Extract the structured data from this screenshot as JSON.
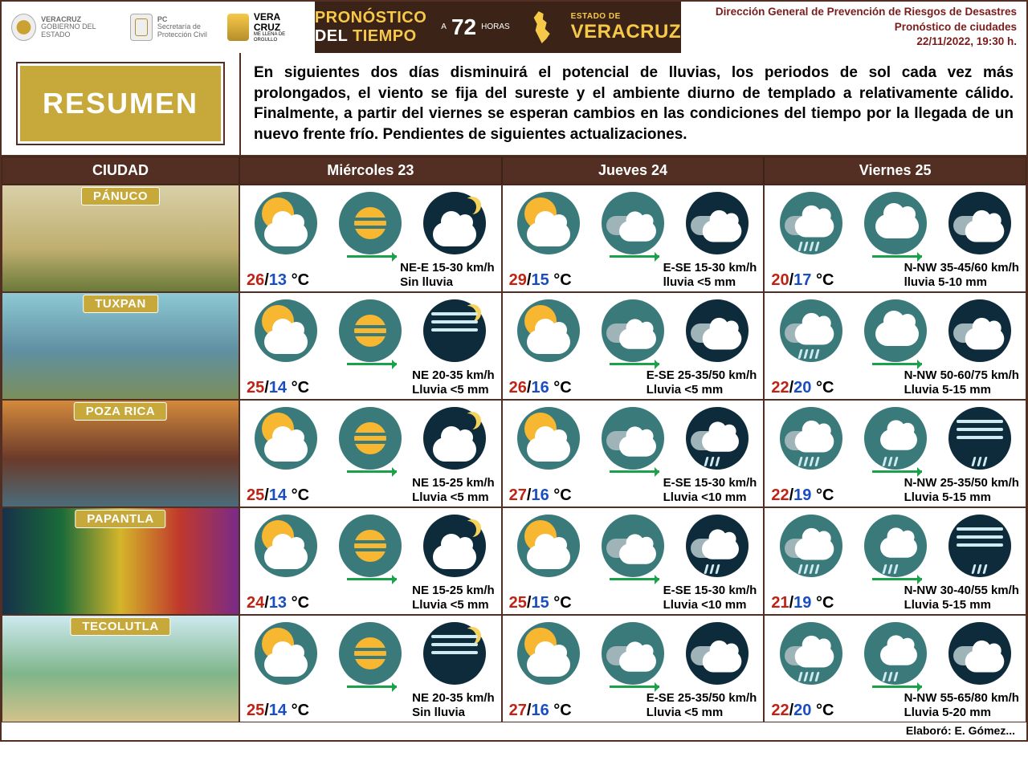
{
  "header": {
    "gov_label1": "VERACRUZ",
    "gov_label2": "GOBIERNO DEL ESTADO",
    "pc_label1": "PC",
    "pc_label2": "Secretaría de Protección Civil",
    "vc_label1": "VERA",
    "vc_label2": "CRUZ",
    "vc_sub": "ME LLENA DE ORGULLO",
    "banner_l1a": "PRONÓSTICO",
    "banner_l1b": "DEL",
    "banner_l1c": "TIEMPO",
    "banner_a": "A",
    "banner_72": "72",
    "banner_hrs": "HORAS",
    "banner_state_top": "ESTADO DE",
    "banner_state": "VERACRUZ",
    "right1": "Dirección General de Prevención de Riesgos de Desastres",
    "right2": "Pronóstico de ciudades",
    "right3": "22/11/2022, 19:30 h."
  },
  "resumen": {
    "badge": "RESUMEN",
    "text": "En siguientes dos días disminuirá el potencial de lluvias, los periodos de sol cada vez más prolongados, el viento se fija del sureste y el ambiente diurno de templado a relativamente cálido. Finalmente, a partir del viernes se esperan cambios en las condiciones del tiempo por la llegada de un nuevo frente frío. Pendientes de siguientes actualizaciones."
  },
  "columns": {
    "city": "CIUDAD",
    "d1": "Miércoles 23",
    "d2": "Jueves 24",
    "d3": "Viernes 25"
  },
  "city_photo_styles": {
    "panuco": "background:linear-gradient(#d9d0a8,#bfae6f 60%,#6b7a3a);",
    "tuxpan": "background:linear-gradient(#8ec9d4,#5f8fa1 55%,#7a8f5a);",
    "pozarica": "background:linear-gradient(#d48a3c,#6b3a2a 55%,#4a6c7a);",
    "papantla": "background:linear-gradient(90deg,#16314a,#1a6b3a,#d4b52a,#c0392b,#7a2a8a);",
    "tecolutla": "background:linear-gradient(#cdeaf0,#7fb58a 55%,#d2c28a);"
  },
  "cities": [
    {
      "name": "PÁNUCO",
      "photo": "panuco",
      "d": [
        {
          "hi": "26",
          "lo": "13",
          "wind": "NE-E 15-30 km/h",
          "rain": "Sin lluvia",
          "icons": [
            "sun-cloud",
            "sun-stripe-arrow",
            "moon-cloud"
          ]
        },
        {
          "hi": "29",
          "lo": "15",
          "wind": "E-SE 15-30 km/h",
          "rain": "lluvia <5 mm",
          "icons": [
            "sun-cloud",
            "cloud2-arrow",
            "cloud-dark"
          ]
        },
        {
          "hi": "20",
          "lo": "17",
          "wind": "N-NW 35-45/60 km/h",
          "rain": "lluvia 5-10 mm",
          "icons": [
            "rain-cloud",
            "cloud-arrow",
            "cloud-dark"
          ]
        }
      ]
    },
    {
      "name": "TUXPAN",
      "photo": "tuxpan",
      "d": [
        {
          "hi": "25",
          "lo": "14",
          "wind": "NE 20-35 km/h",
          "rain": "Lluvia <5 mm",
          "icons": [
            "sun-cloud",
            "sun-stripe-arrow",
            "moon-waves"
          ]
        },
        {
          "hi": "26",
          "lo": "16",
          "wind": "E-SE 25-35/50 km/h",
          "rain": "Lluvia <5 mm",
          "icons": [
            "sun-cloud",
            "cloud2-arrow",
            "cloud-dark"
          ]
        },
        {
          "hi": "22",
          "lo": "20",
          "wind": "N-NW 50-60/75 km/h",
          "rain": "Lluvia 5-15 mm",
          "icons": [
            "rain-cloud",
            "cloud-arrow",
            "cloud-dark"
          ]
        }
      ]
    },
    {
      "name": "POZA RICA",
      "photo": "pozarica",
      "d": [
        {
          "hi": "25",
          "lo": "14",
          "wind": "NE 15-25 km/h",
          "rain": "Lluvia <5 mm",
          "icons": [
            "sun-cloud",
            "sun-stripe-arrow",
            "moon-cloud"
          ]
        },
        {
          "hi": "27",
          "lo": "16",
          "wind": "E-SE 15-30 km/h",
          "rain": "Lluvia <10 mm",
          "icons": [
            "sun-cloud",
            "cloud2-arrow",
            "rain-dark"
          ]
        },
        {
          "hi": "22",
          "lo": "19",
          "wind": "N-NW 25-35/50 km/h",
          "rain": "Lluvia 5-15 mm",
          "icons": [
            "rain-cloud",
            "rain-arrow",
            "waves-rain-dark"
          ]
        }
      ]
    },
    {
      "name": "PAPANTLA",
      "photo": "papantla",
      "d": [
        {
          "hi": "24",
          "lo": "13",
          "wind": "NE 15-25 km/h",
          "rain": "Lluvia <5 mm",
          "icons": [
            "sun-cloud",
            "sun-stripe-arrow",
            "moon-cloud"
          ]
        },
        {
          "hi": "25",
          "lo": "15",
          "wind": "E-SE 15-30 km/h",
          "rain": "Lluvia <10 mm",
          "icons": [
            "sun-cloud",
            "cloud2-arrow",
            "rain-dark"
          ]
        },
        {
          "hi": "21",
          "lo": "19",
          "wind": "N-NW 30-40/55 km/h",
          "rain": "Lluvia 5-15 mm",
          "icons": [
            "rain-cloud",
            "rain-arrow",
            "waves-rain-dark"
          ]
        }
      ]
    },
    {
      "name": "TECOLUTLA",
      "photo": "tecolutla",
      "d": [
        {
          "hi": "25",
          "lo": "14",
          "wind": "NE 20-35 km/h",
          "rain": "Sin lluvia",
          "icons": [
            "sun-cloud",
            "sun-stripe-arrow",
            "moon-waves"
          ]
        },
        {
          "hi": "27",
          "lo": "16",
          "wind": "E-SE 25-35/50 km/h",
          "rain": "Lluvia <5 mm",
          "icons": [
            "sun-cloud",
            "cloud2-arrow",
            "cloud-dark"
          ]
        },
        {
          "hi": "22",
          "lo": "20",
          "wind": "N-NW 55-65/80 km/h",
          "rain": "Lluvia 5-20 mm",
          "icons": [
            "rain-cloud",
            "rain-arrow",
            "cloud-dark"
          ]
        }
      ]
    }
  ],
  "footer": "Elaboró: E. Gómez..."
}
